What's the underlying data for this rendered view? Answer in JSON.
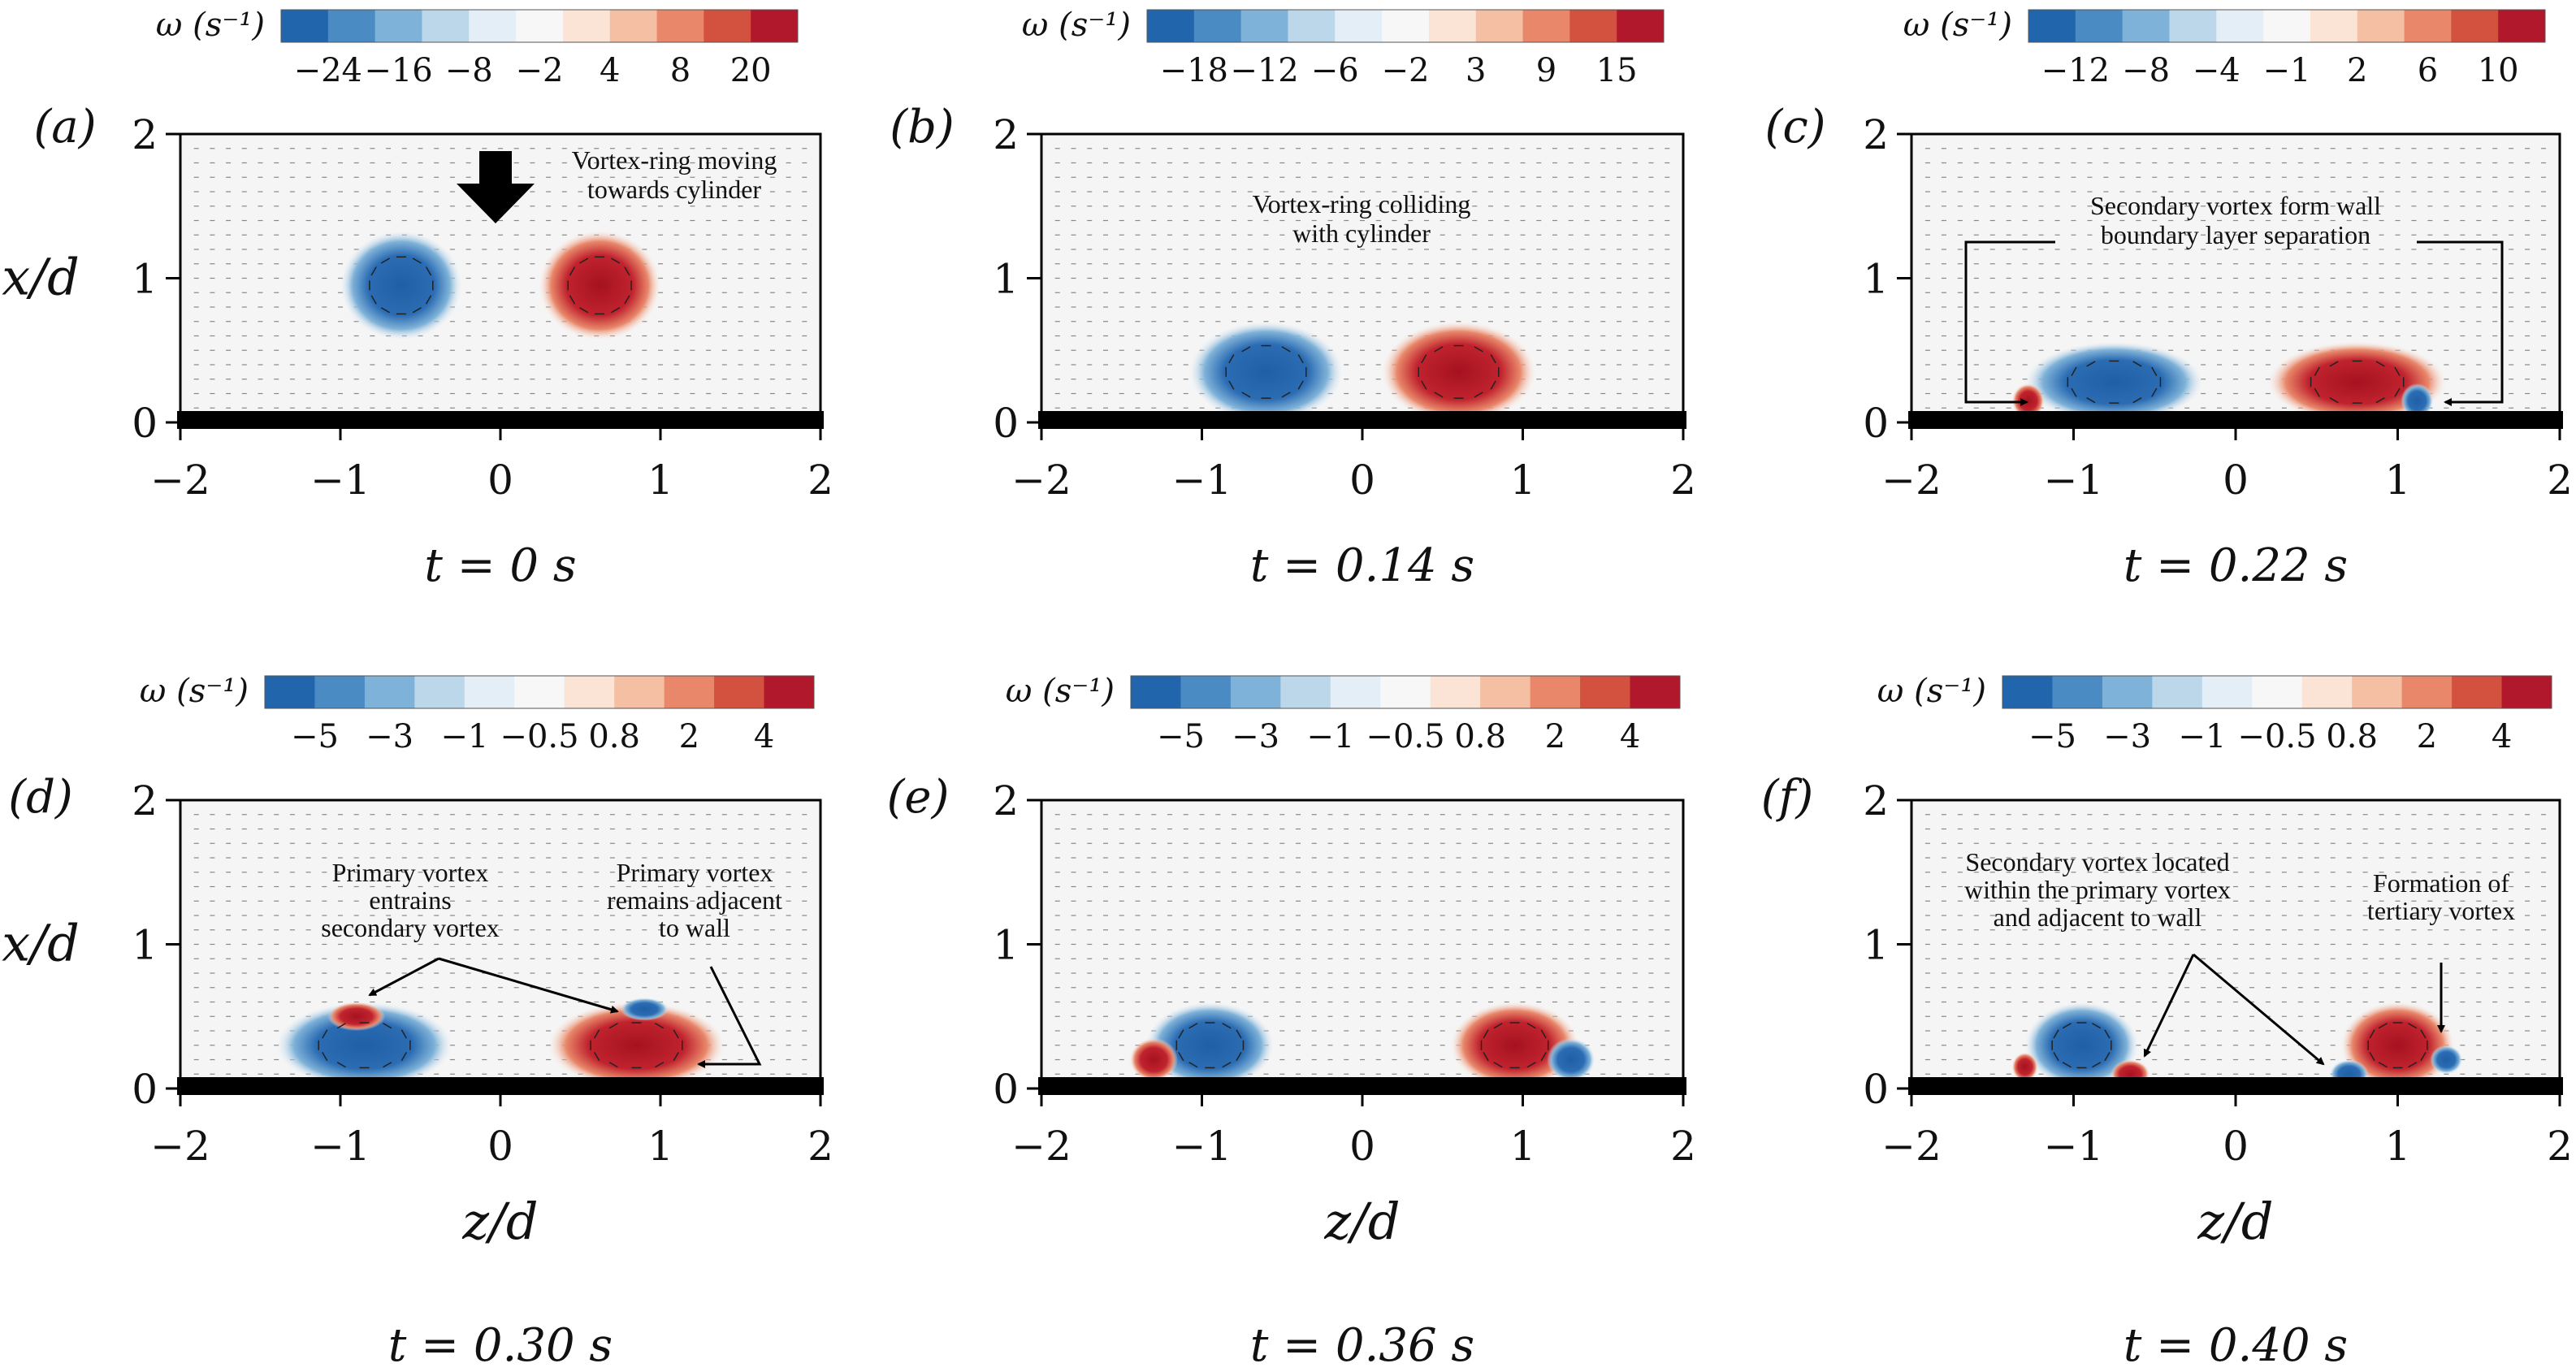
{
  "chart_data": [
    {
      "type": "heatmap",
      "panel": "(a)",
      "time": "t = 0 s",
      "colorbar": {
        "title": "ω (s⁻¹)",
        "ticks": [
          "−24",
          "−16",
          "−8",
          "−2",
          "4",
          "8",
          "20"
        ]
      },
      "x_ticks": [
        "−2",
        "−1",
        "0",
        "1",
        "2"
      ],
      "y_ticks": [
        "0",
        "1",
        "2"
      ],
      "xlim": [
        -2,
        2
      ],
      "ylim": [
        0,
        2
      ],
      "ylabel": "x/d",
      "vortices": [
        {
          "sign": "negative",
          "z": -0.62,
          "x": 0.95,
          "rz": 0.38,
          "rx": 0.38
        },
        {
          "sign": "positive",
          "z": 0.62,
          "x": 0.95,
          "rz": 0.38,
          "rx": 0.38
        }
      ],
      "annotations": [
        "Vortex-ring moving",
        "towards cylinder"
      ]
    },
    {
      "type": "heatmap",
      "panel": "(b)",
      "time": "t = 0.14 s",
      "colorbar": {
        "title": "ω (s⁻¹)",
        "ticks": [
          "−18",
          "−12",
          "−6",
          "−2",
          "3",
          "9",
          "15"
        ]
      },
      "x_ticks": [
        "−2",
        "−1",
        "0",
        "1",
        "2"
      ],
      "y_ticks": [
        "0",
        "1",
        "2"
      ],
      "xlim": [
        -2,
        2
      ],
      "ylim": [
        0,
        2
      ],
      "vortices": [
        {
          "sign": "negative",
          "z": -0.6,
          "x": 0.35,
          "rz": 0.48,
          "rx": 0.35
        },
        {
          "sign": "positive",
          "z": 0.6,
          "x": 0.35,
          "rz": 0.48,
          "rx": 0.35
        }
      ],
      "annotations": [
        "Vortex-ring colliding",
        "with cylinder"
      ]
    },
    {
      "type": "heatmap",
      "panel": "(c)",
      "time": "t = 0.22 s",
      "colorbar": {
        "title": "ω (s⁻¹)",
        "ticks": [
          "−12",
          "−8",
          "−4",
          "−1",
          "2",
          "6",
          "10"
        ]
      },
      "x_ticks": [
        "−2",
        "−1",
        "0",
        "1",
        "2"
      ],
      "y_ticks": [
        "0",
        "1",
        "2"
      ],
      "xlim": [
        -2,
        2
      ],
      "ylim": [
        0,
        2
      ],
      "vortices": [
        {
          "sign": "negative",
          "z": -0.75,
          "x": 0.28,
          "rz": 0.55,
          "rx": 0.28
        },
        {
          "sign": "positive",
          "z": 0.75,
          "x": 0.28,
          "rz": 0.55,
          "rx": 0.28
        },
        {
          "sign": "positive",
          "z": -1.28,
          "x": 0.15,
          "rz": 0.1,
          "rx": 0.12
        },
        {
          "sign": "negative",
          "z": 1.12,
          "x": 0.15,
          "rz": 0.1,
          "rx": 0.12
        }
      ],
      "annotations": [
        "Secondary vortex form wall",
        "boundary layer separation"
      ]
    },
    {
      "type": "heatmap",
      "panel": "(d)",
      "time": "t = 0.30 s",
      "colorbar": {
        "title": "ω (s⁻¹)",
        "ticks": [
          "−5",
          "−3",
          "−1",
          "−0.5",
          "0.8",
          "2",
          "4"
        ]
      },
      "x_ticks": [
        "−2",
        "−1",
        "0",
        "1",
        "2"
      ],
      "y_ticks": [
        "0",
        "1",
        "2"
      ],
      "xlim": [
        -2,
        2
      ],
      "ylim": [
        0,
        2
      ],
      "xlabel": "z/d",
      "ylabel": "x/d",
      "vortices": [
        {
          "sign": "negative",
          "z": -0.85,
          "x": 0.3,
          "rz": 0.55,
          "rx": 0.3
        },
        {
          "sign": "positive",
          "z": 0.85,
          "x": 0.3,
          "rz": 0.55,
          "rx": 0.3
        },
        {
          "sign": "positive",
          "z": -0.9,
          "x": 0.5,
          "rz": 0.18,
          "rx": 0.1
        },
        {
          "sign": "negative",
          "z": 0.9,
          "x": 0.55,
          "rz": 0.15,
          "rx": 0.08
        }
      ],
      "annotations": [
        "Primary vortex",
        "entrains",
        "secondary vortex",
        "Primary vortex",
        "remains adjacent",
        "to wall"
      ]
    },
    {
      "type": "heatmap",
      "panel": "(e)",
      "time": "t = 0.36 s",
      "colorbar": {
        "title": "ω (s⁻¹)",
        "ticks": [
          "−5",
          "−3",
          "−1",
          "−0.5",
          "0.8",
          "2",
          "4"
        ]
      },
      "x_ticks": [
        "−2",
        "−1",
        "0",
        "1",
        "2"
      ],
      "y_ticks": [
        "0",
        "1",
        "2"
      ],
      "xlim": [
        -2,
        2
      ],
      "ylim": [
        0,
        2
      ],
      "xlabel": "z/d",
      "vortices": [
        {
          "sign": "negative",
          "z": -0.95,
          "x": 0.3,
          "rz": 0.4,
          "rx": 0.3
        },
        {
          "sign": "positive",
          "z": 0.95,
          "x": 0.3,
          "rz": 0.4,
          "rx": 0.3
        },
        {
          "sign": "positive",
          "z": -1.3,
          "x": 0.2,
          "rz": 0.15,
          "rx": 0.15
        },
        {
          "sign": "negative",
          "z": 1.3,
          "x": 0.2,
          "rz": 0.15,
          "rx": 0.15
        }
      ],
      "annotations": []
    },
    {
      "type": "heatmap",
      "panel": "(f)",
      "time": "t = 0.40 s",
      "colorbar": {
        "title": "ω (s⁻¹)",
        "ticks": [
          "−5",
          "−3",
          "−1",
          "−0.5",
          "0.8",
          "2",
          "4"
        ]
      },
      "x_ticks": [
        "−2",
        "−1",
        "0",
        "1",
        "2"
      ],
      "y_ticks": [
        "0",
        "1",
        "2"
      ],
      "xlim": [
        -2,
        2
      ],
      "ylim": [
        0,
        2
      ],
      "xlabel": "z/d",
      "vortices": [
        {
          "sign": "negative",
          "z": -0.95,
          "x": 0.3,
          "rz": 0.35,
          "rx": 0.3
        },
        {
          "sign": "positive",
          "z": 1.0,
          "x": 0.3,
          "rz": 0.35,
          "rx": 0.3
        },
        {
          "sign": "positive",
          "z": -0.65,
          "x": 0.1,
          "rz": 0.12,
          "rx": 0.1
        },
        {
          "sign": "negative",
          "z": 0.7,
          "x": 0.1,
          "rz": 0.12,
          "rx": 0.1
        },
        {
          "sign": "positive",
          "z": -1.3,
          "x": 0.15,
          "rz": 0.08,
          "rx": 0.1
        },
        {
          "sign": "negative",
          "z": 1.3,
          "x": 0.2,
          "rz": 0.1,
          "rx": 0.1
        }
      ],
      "annotations": [
        "Secondary vortex located",
        "within the primary vortex",
        "and adjacent to wall",
        "Formation of",
        "tertiary vortex"
      ]
    }
  ],
  "colors": {
    "negative": [
      "#2166ac",
      "#4a8bc4",
      "#7fb2d8",
      "#bcd7ea",
      "#e4eef6"
    ],
    "positive": [
      "#fbe4d6",
      "#f5bfa3",
      "#e8876a",
      "#d2513f",
      "#b2182b"
    ],
    "field_bg": "#f5f5f5",
    "cylinder": "#000000"
  }
}
